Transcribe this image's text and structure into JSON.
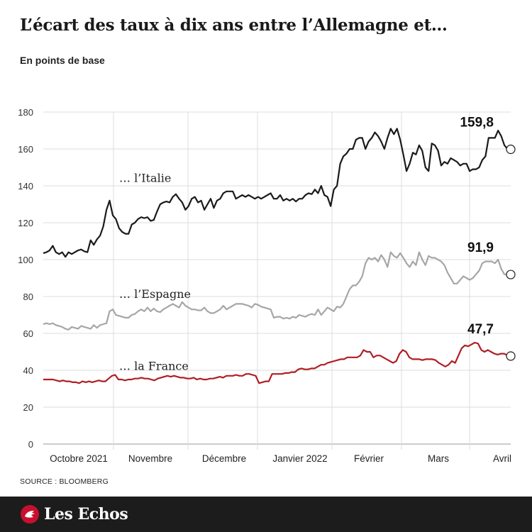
{
  "title": "L’écart des taux à dix ans entre l’Allemagne et…",
  "subtitle": "En points de base",
  "source": "SOURCE : BLOOMBERG",
  "brand": "Les Echos",
  "colors": {
    "italie": "#1a1a1a",
    "espagne": "#a6a6a6",
    "france": "#b01e23",
    "grid": "#dcdcdc",
    "footer": "#1c1c1c"
  },
  "chart_data": {
    "type": "line",
    "ylim": [
      0,
      180
    ],
    "yticks": [
      0,
      20,
      40,
      60,
      80,
      100,
      120,
      140,
      160,
      180
    ],
    "grid": "horizontal + month separators",
    "months": [
      "Octobre 2021",
      "Novembre",
      "Décembre",
      "Janvier 2022",
      "Février",
      "Mars",
      "Avril"
    ],
    "series": [
      {
        "name": "… l’Italie",
        "end_label": "159,8",
        "color": "#1a1a1a",
        "values": [
          103.5,
          104,
          105,
          107.5,
          104,
          103,
          104,
          101.5,
          104,
          103,
          104,
          105,
          105.5,
          104.5,
          104,
          110.5,
          108,
          111,
          113,
          118,
          127,
          132,
          124,
          122,
          117,
          115,
          114,
          114,
          119,
          120,
          122,
          123,
          122.5,
          123,
          121,
          121.5,
          126,
          130,
          131,
          131.5,
          131,
          134,
          135.5,
          133,
          131,
          127,
          129,
          133,
          134,
          131,
          132,
          127,
          130,
          133,
          128,
          132,
          133,
          136,
          137,
          137,
          137,
          133,
          134,
          135,
          134,
          135,
          134,
          133,
          134,
          133,
          134,
          135,
          136,
          133,
          133,
          135,
          132,
          133,
          132,
          133,
          131.5,
          133,
          133,
          135,
          136,
          135.5,
          138,
          136,
          140,
          135,
          134,
          129,
          138,
          140,
          152,
          156,
          157.5,
          160,
          160,
          165,
          166,
          166,
          160,
          164,
          166,
          169,
          167,
          164,
          160,
          166,
          171,
          168,
          171,
          165,
          157,
          148,
          152,
          158,
          157,
          162,
          159,
          150,
          148,
          163,
          162,
          159,
          151,
          153,
          152,
          155,
          154,
          153,
          151,
          152,
          152,
          148,
          149,
          149,
          150,
          154,
          156,
          166,
          166,
          166,
          170,
          167,
          162,
          160,
          159.8
        ],
        "label_value": 146
      },
      {
        "name": "… l’Espagne",
        "end_label": "91,9",
        "color": "#a6a6a6",
        "values": [
          65,
          65.5,
          65,
          65.5,
          64.5,
          64,
          63.5,
          62.5,
          62,
          63.5,
          63,
          62.5,
          64,
          63.5,
          63,
          62.5,
          64.5,
          63,
          64.5,
          65,
          65.5,
          72,
          73,
          70,
          69.5,
          69,
          68.5,
          68.5,
          70,
          70.5,
          72,
          73,
          72,
          74,
          72,
          73.5,
          72,
          71.5,
          73,
          74,
          75,
          76,
          75,
          74,
          77,
          75,
          74,
          73,
          73,
          72.5,
          72.5,
          74,
          72,
          71,
          71,
          72,
          73,
          75,
          73,
          74,
          75,
          76,
          76,
          76,
          75.5,
          75,
          74,
          76,
          75.5,
          74.5,
          74,
          73.5,
          73,
          68.5,
          69,
          69,
          68,
          68.5,
          68,
          69,
          68.5,
          70,
          69.5,
          69,
          70,
          70.5,
          70,
          73,
          70,
          72,
          74,
          73,
          72,
          74.5,
          74,
          76,
          80,
          84,
          86,
          86,
          88,
          91,
          98,
          101,
          100,
          101,
          99,
          102.5,
          100,
          96,
          104,
          102,
          101,
          103.5,
          101,
          98,
          96,
          99,
          97,
          104,
          100,
          97,
          102,
          101,
          101,
          100,
          99,
          97,
          93,
          90,
          87,
          87,
          89,
          91,
          90,
          89,
          90,
          92,
          94,
          98,
          99,
          99,
          99,
          98,
          100,
          95,
          92,
          92,
          91.9
        ],
        "label_value": 83
      },
      {
        "name": "… la France",
        "end_label": "47,7",
        "color": "#b01e23",
        "values": [
          35,
          35,
          35,
          35,
          34.5,
          34,
          34.5,
          34,
          34,
          33.5,
          33.5,
          33,
          34,
          33.5,
          34,
          33.5,
          34,
          34.5,
          34,
          34,
          35.5,
          37,
          37.5,
          35,
          35,
          34.5,
          35,
          35,
          35.5,
          35.5,
          36,
          35.5,
          35.5,
          35,
          34.5,
          35.5,
          36,
          36.5,
          37,
          36.5,
          37,
          36.5,
          36,
          36,
          35.5,
          35.5,
          36,
          35,
          35.5,
          35,
          35,
          35.5,
          35.5,
          36,
          36.5,
          36,
          37,
          37,
          37,
          37.5,
          37,
          37,
          38,
          38,
          37.5,
          37,
          33,
          33.5,
          34,
          34,
          38,
          38,
          38,
          38,
          38.5,
          38.5,
          39,
          39,
          40.5,
          41,
          40.5,
          40.5,
          41,
          41,
          42,
          43,
          43,
          44,
          44.5,
          45,
          45.5,
          46,
          46,
          47,
          47,
          47,
          47,
          48,
          51,
          50,
          50,
          47,
          48,
          48,
          47,
          46,
          45,
          44,
          45,
          49,
          51,
          50,
          47,
          46,
          46,
          46,
          45.5,
          46,
          46,
          46,
          45.5,
          44,
          43,
          42,
          43,
          45,
          44,
          48,
          52,
          53.5,
          53,
          54,
          55,
          54.5,
          51,
          50,
          51,
          50,
          49,
          48.5,
          49,
          49,
          48,
          47.7
        ],
        "label_value": 44
      }
    ],
    "end_labels_position": "right"
  }
}
